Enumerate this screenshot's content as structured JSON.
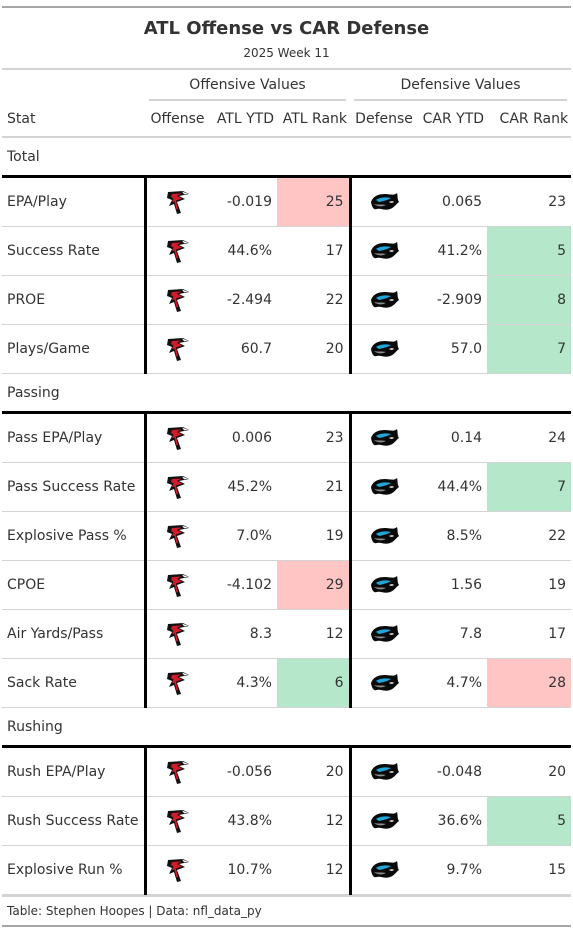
{
  "header": {
    "title": "ATL Offense vs CAR Defense",
    "subtitle": "2025 Week 11"
  },
  "spanners": {
    "offense": "Offensive Values",
    "defense": "Defensive Values"
  },
  "columns": [
    "Stat",
    "Offense",
    "ATL YTD",
    "ATL Rank",
    "Defense",
    "CAR YTD",
    "CAR Rank"
  ],
  "logos": {
    "offense": "falcons-logo-icon",
    "defense": "panthers-logo-icon"
  },
  "colors": {
    "worse_rank": "#ffc5c5",
    "better_rank": "#b5e8cb",
    "divider": "#000000"
  },
  "groups": [
    {
      "label": "Total",
      "rows": [
        {
          "stat": "EPA/Play",
          "atl_ytd": "-0.019",
          "atl_rank": "25",
          "car_ytd": "0.065",
          "car_rank": "23",
          "atl_hl": "red",
          "car_hl": ""
        },
        {
          "stat": "Success Rate",
          "atl_ytd": "44.6%",
          "atl_rank": "17",
          "car_ytd": "41.2%",
          "car_rank": "5",
          "atl_hl": "",
          "car_hl": "green"
        },
        {
          "stat": "PROE",
          "atl_ytd": "-2.494",
          "atl_rank": "22",
          "car_ytd": "-2.909",
          "car_rank": "8",
          "atl_hl": "",
          "car_hl": "green"
        },
        {
          "stat": "Plays/Game",
          "atl_ytd": "60.7",
          "atl_rank": "20",
          "car_ytd": "57.0",
          "car_rank": "7",
          "atl_hl": "",
          "car_hl": "green"
        }
      ]
    },
    {
      "label": "Passing",
      "rows": [
        {
          "stat": "Pass EPA/Play",
          "atl_ytd": "0.006",
          "atl_rank": "23",
          "car_ytd": "0.14",
          "car_rank": "24",
          "atl_hl": "",
          "car_hl": ""
        },
        {
          "stat": "Pass Success Rate",
          "atl_ytd": "45.2%",
          "atl_rank": "21",
          "car_ytd": "44.4%",
          "car_rank": "7",
          "atl_hl": "",
          "car_hl": "green"
        },
        {
          "stat": "Explosive Pass %",
          "atl_ytd": "7.0%",
          "atl_rank": "19",
          "car_ytd": "8.5%",
          "car_rank": "22",
          "atl_hl": "",
          "car_hl": ""
        },
        {
          "stat": "CPOE",
          "atl_ytd": "-4.102",
          "atl_rank": "29",
          "car_ytd": "1.56",
          "car_rank": "19",
          "atl_hl": "red",
          "car_hl": ""
        },
        {
          "stat": "Air Yards/Pass",
          "atl_ytd": "8.3",
          "atl_rank": "12",
          "car_ytd": "7.8",
          "car_rank": "17",
          "atl_hl": "",
          "car_hl": ""
        },
        {
          "stat": "Sack Rate",
          "atl_ytd": "4.3%",
          "atl_rank": "6",
          "car_ytd": "4.7%",
          "car_rank": "28",
          "atl_hl": "green",
          "car_hl": "red"
        }
      ]
    },
    {
      "label": "Rushing",
      "rows": [
        {
          "stat": "Rush EPA/Play",
          "atl_ytd": "-0.056",
          "atl_rank": "20",
          "car_ytd": "-0.048",
          "car_rank": "20",
          "atl_hl": "",
          "car_hl": ""
        },
        {
          "stat": "Rush Success Rate",
          "atl_ytd": "43.8%",
          "atl_rank": "12",
          "car_ytd": "36.6%",
          "car_rank": "5",
          "atl_hl": "",
          "car_hl": "green"
        },
        {
          "stat": "Explosive Run %",
          "atl_ytd": "10.7%",
          "atl_rank": "12",
          "car_ytd": "9.7%",
          "car_rank": "15",
          "atl_hl": "",
          "car_hl": ""
        }
      ]
    }
  ],
  "footer": "Table: Stephen Hoopes | Data: nfl_data_py",
  "chart_data": {
    "type": "table",
    "title": "ATL Offense vs CAR Defense",
    "subtitle": "2025 Week 11",
    "columns": [
      "Stat",
      "Offense",
      "ATL YTD",
      "ATL Rank",
      "Defense",
      "CAR YTD",
      "CAR Rank"
    ],
    "groups": [
      "Total",
      "Passing",
      "Rushing"
    ]
  }
}
